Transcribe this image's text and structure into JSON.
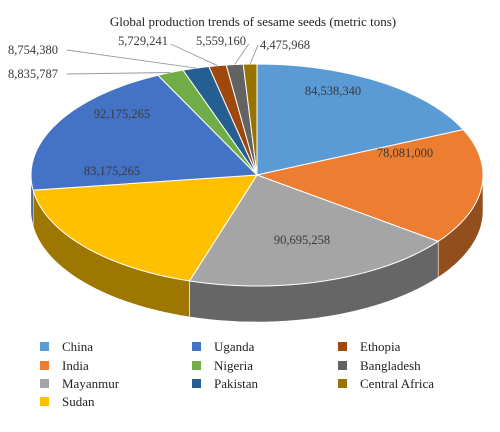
{
  "chart_data": {
    "type": "pie",
    "title": "Global production trends of sesame seeds (metric tons)",
    "slices": [
      {
        "name": "China",
        "value": 84538340,
        "label": "84,538,340",
        "color": "#5B9BD5"
      },
      {
        "name": "India",
        "value": 78081000,
        "label": "78,081,000",
        "color": "#ED7D31"
      },
      {
        "name": "Mayanmur",
        "value": 90695258,
        "label": "90,695,258",
        "color": "#A5A5A5"
      },
      {
        "name": "Sudan",
        "value": 83175265,
        "label": "83,175,265",
        "color": "#FFC000"
      },
      {
        "name": "Uganda",
        "value": 92175265,
        "label": "92,175,265",
        "color": "#4472C4"
      },
      {
        "name": "Nigeria",
        "value": 8835787,
        "label": "8,835,787",
        "color": "#70AD47"
      },
      {
        "name": "Pakistan",
        "value": 8754380,
        "label": "8,754,380",
        "color": "#255E91"
      },
      {
        "name": "Ethopia",
        "value": 5729241,
        "label": "5,729,241",
        "color": "#9E480E"
      },
      {
        "name": "Bangladesh",
        "value": 5559160,
        "label": "5,559,160",
        "color": "#636363"
      },
      {
        "name": "Central Africa",
        "value": 4475968,
        "label": "4,475,968",
        "color": "#997300"
      }
    ],
    "legend": {
      "placement": "bottom",
      "columns": [
        [
          "China",
          "India",
          "Mayanmur",
          "Sudan"
        ],
        [
          "Uganda",
          "Nigeria",
          "Pakistan"
        ],
        [
          "Ethopia",
          "Bangladesh",
          "Central Africa"
        ]
      ]
    }
  }
}
